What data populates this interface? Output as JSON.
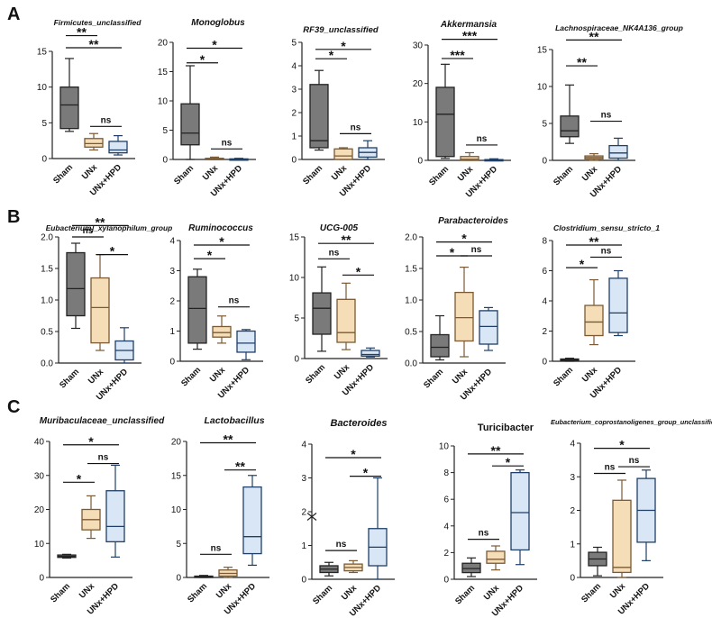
{
  "figure": {
    "panel_labels": [
      "A",
      "B",
      "C"
    ],
    "group_labels": [
      "Sham",
      "UNx",
      "UNx+HPD"
    ],
    "group_colors": {
      "Sham": {
        "fill": "#7a7a7a",
        "stroke": "#222222"
      },
      "UNx": {
        "fill": "#f5ddb8",
        "stroke": "#7a5a34"
      },
      "UNx+HPD": {
        "fill": "#d9e6f5",
        "stroke": "#1f3f66"
      }
    }
  },
  "chart_data": [
    {
      "type": "box",
      "panel": "A",
      "title": "Firmicutes_unclassified",
      "title_style": "italic",
      "categories": [
        "Sham",
        "UNx",
        "UNx+HPD"
      ],
      "ylim": [
        0,
        15
      ],
      "ticks": [
        0,
        5,
        10,
        15
      ],
      "boxes": [
        [
          3.8,
          4.2,
          7.5,
          10,
          14
        ],
        [
          1.2,
          1.6,
          2.1,
          2.8,
          3.5
        ],
        [
          0.5,
          0.8,
          1.2,
          2.4,
          3.2
        ]
      ],
      "annotations": [
        {
          "from": 0,
          "to": 1,
          "label": "**",
          "y": 17.2
        },
        {
          "from": 0,
          "to": 2,
          "label": "**",
          "y": 15.5
        },
        {
          "from": 1,
          "to": 2,
          "label": "ns",
          "y": 4.5
        }
      ]
    },
    {
      "type": "box",
      "panel": "A",
      "title": "Monoglobus",
      "title_style": "italic",
      "categories": [
        "Sham",
        "UNx",
        "UNx+HPD"
      ],
      "ylim": [
        0,
        20
      ],
      "ticks": [
        0,
        5,
        10,
        15,
        20
      ],
      "boxes": [
        [
          0,
          2.5,
          4.5,
          9.5,
          16
        ],
        [
          0,
          0,
          0.1,
          0.2,
          0.4
        ],
        [
          0,
          0,
          0,
          0.1,
          0.2
        ]
      ],
      "annotations": [
        {
          "from": 0,
          "to": 2,
          "label": "*",
          "y": 19
        },
        {
          "from": 0,
          "to": 1,
          "label": "*",
          "y": 16.5
        },
        {
          "from": 1,
          "to": 2,
          "label": "ns",
          "y": 1.8
        }
      ]
    },
    {
      "type": "box",
      "panel": "A",
      "title": "RF39_unclassified",
      "title_style": "italic",
      "categories": [
        "Sham",
        "UNx",
        "UNx+HPD"
      ],
      "ylim": [
        0,
        5
      ],
      "ticks": [
        0,
        1,
        2,
        3,
        4,
        5
      ],
      "boxes": [
        [
          0.4,
          0.5,
          0.8,
          3.2,
          3.8
        ],
        [
          0,
          0,
          0.15,
          0.45,
          0.5
        ],
        [
          0,
          0.1,
          0.3,
          0.5,
          0.8
        ]
      ],
      "annotations": [
        {
          "from": 0,
          "to": 1,
          "label": "*",
          "y": 4.3
        },
        {
          "from": 0,
          "to": 2,
          "label": "*",
          "y": 4.7
        },
        {
          "from": 1,
          "to": 2,
          "label": "ns",
          "y": 1.1
        }
      ]
    },
    {
      "type": "box",
      "panel": "A",
      "title": "Akkermansia",
      "title_style": "italic",
      "categories": [
        "Sham",
        "UNx",
        "UNx+HPD"
      ],
      "ylim": [
        0,
        30
      ],
      "ticks": [
        0,
        10,
        20,
        30
      ],
      "boxes": [
        [
          0.5,
          1,
          12,
          19,
          25
        ],
        [
          0,
          0,
          0.3,
          1,
          2
        ],
        [
          0,
          0,
          0,
          0.2,
          0.4
        ]
      ],
      "annotations": [
        {
          "from": 0,
          "to": 2,
          "label": "***",
          "y": 31.5
        },
        {
          "from": 0,
          "to": 1,
          "label": "***",
          "y": 26.5
        },
        {
          "from": 1,
          "to": 2,
          "label": "ns",
          "y": 4
        }
      ]
    },
    {
      "type": "box",
      "panel": "A",
      "title": "Lachnospiraceae_NK4A136_group",
      "title_style": "italic",
      "categories": [
        "Sham",
        "UNx",
        "UNx+HPD"
      ],
      "ylim": [
        0,
        15
      ],
      "ticks": [
        0,
        5,
        10,
        15
      ],
      "boxes": [
        [
          2.3,
          3.2,
          4,
          6,
          10.2
        ],
        [
          0,
          0.2,
          0.4,
          0.6,
          0.9
        ],
        [
          0,
          0.3,
          1,
          2,
          3
        ]
      ],
      "annotations": [
        {
          "from": 0,
          "to": 2,
          "label": "**",
          "y": 16.3
        },
        {
          "from": 0,
          "to": 1,
          "label": "**",
          "y": 12.8
        },
        {
          "from": 1,
          "to": 2,
          "label": "ns",
          "y": 5.3
        }
      ]
    },
    {
      "type": "box",
      "panel": "B",
      "title": "Eubacterium]_xylanophilum_group",
      "title_style": "italic",
      "categories": [
        "Sham",
        "UNx",
        "UNx+HPD"
      ],
      "ylim": [
        0,
        2
      ],
      "ticks": [
        0,
        0.5,
        1,
        1.5,
        2
      ],
      "tick_labels": [
        "0.0",
        "0.5",
        "1.0",
        "1.5",
        "2.0"
      ],
      "boxes": [
        [
          0.55,
          0.75,
          1.18,
          1.75,
          1.9
        ],
        [
          0.2,
          0.32,
          0.88,
          1.35,
          1.72
        ],
        [
          0,
          0.05,
          0.2,
          0.35,
          0.56
        ]
      ],
      "annotations": [
        {
          "from": 0,
          "to": 2,
          "label": "**",
          "y": 2.18
        },
        {
          "from": 0,
          "to": 1,
          "label": "ns",
          "y": 2.0
        },
        {
          "from": 1,
          "to": 2,
          "label": "*",
          "y": 1.72
        }
      ]
    },
    {
      "type": "box",
      "panel": "B",
      "title": "Ruminococcus",
      "title_style": "italic",
      "categories": [
        "Sham",
        "UNx",
        "UNx+HPD"
      ],
      "ylim": [
        0,
        4
      ],
      "ticks": [
        0,
        1,
        2,
        3,
        4
      ],
      "boxes": [
        [
          0.4,
          0.6,
          1.75,
          2.8,
          3.05
        ],
        [
          0.6,
          0.8,
          0.95,
          1.15,
          1.5
        ],
        [
          0.05,
          0.3,
          0.6,
          1,
          1.05
        ]
      ],
      "annotations": [
        {
          "from": 0,
          "to": 2,
          "label": "*",
          "y": 3.85
        },
        {
          "from": 0,
          "to": 1,
          "label": "*",
          "y": 3.4
        },
        {
          "from": 1,
          "to": 2,
          "label": "ns",
          "y": 1.8
        }
      ]
    },
    {
      "type": "box",
      "panel": "B",
      "title": "UCG-005",
      "title_style": "italic",
      "categories": [
        "Sham",
        "UNx",
        "UNx+HPD"
      ],
      "ylim": [
        0,
        15
      ],
      "ticks": [
        0,
        5,
        10,
        15
      ],
      "boxes": [
        [
          0.9,
          3,
          6.2,
          8.1,
          11.3
        ],
        [
          1.1,
          2,
          3.2,
          7.3,
          9.3
        ],
        [
          0.2,
          0.3,
          0.5,
          1,
          1.3
        ]
      ],
      "annotations": [
        {
          "from": 0,
          "to": 2,
          "label": "**",
          "y": 14.2
        },
        {
          "from": 0,
          "to": 1,
          "label": "ns",
          "y": 12.3
        },
        {
          "from": 1,
          "to": 2,
          "label": "*",
          "y": 10.3
        }
      ]
    },
    {
      "type": "box",
      "panel": "B",
      "title": "Parabacteroides",
      "title_style": "italic",
      "categories": [
        "Sham",
        "UNx",
        "UNx+HPD"
      ],
      "ylim": [
        0,
        2
      ],
      "ticks": [
        0,
        0.5,
        1,
        1.5,
        2
      ],
      "tick_labels": [
        "0.0",
        "0.5",
        "1.0",
        "1.5",
        "2.0"
      ],
      "boxes": [
        [
          0.05,
          0.1,
          0.25,
          0.45,
          0.75
        ],
        [
          0.1,
          0.35,
          0.72,
          1.12,
          1.52
        ],
        [
          0.2,
          0.3,
          0.58,
          0.83,
          0.88
        ]
      ],
      "annotations": [
        {
          "from": 0,
          "to": 2,
          "label": "*",
          "y": 1.92
        },
        {
          "from": 0,
          "to": 1,
          "label": "*",
          "y": 1.7
        },
        {
          "from": 1,
          "to": 2,
          "label": "ns",
          "y": 1.7
        }
      ]
    },
    {
      "type": "box",
      "panel": "B",
      "title": "Clostridium_sensu_stricto_1",
      "title_style": "italic",
      "categories": [
        "Sham",
        "UNx",
        "UNx+HPD"
      ],
      "ylim": [
        0,
        8
      ],
      "ticks": [
        0,
        2,
        4,
        6,
        8
      ],
      "boxes": [
        [
          0,
          0.05,
          0.1,
          0.15,
          0.2
        ],
        [
          1.1,
          1.7,
          2.6,
          3.7,
          5.4
        ],
        [
          1.7,
          1.9,
          3.2,
          5.5,
          6
        ]
      ],
      "annotations": [
        {
          "from": 0,
          "to": 2,
          "label": "**",
          "y": 7.7
        },
        {
          "from": 0,
          "to": 1,
          "label": "*",
          "y": 6.2
        },
        {
          "from": 1,
          "to": 2,
          "label": "ns",
          "y": 6.9
        }
      ]
    },
    {
      "type": "box",
      "panel": "C",
      "title": "Muribaculaceae_unclassified",
      "title_style": "italic",
      "categories": [
        "Sham",
        "UNx",
        "UNx+HPD"
      ],
      "ylim": [
        0,
        40
      ],
      "ticks": [
        0,
        10,
        20,
        30,
        40
      ],
      "boxes": [
        [
          5.7,
          5.9,
          6.2,
          6.6,
          6.8
        ],
        [
          11.5,
          14,
          17,
          20,
          24
        ],
        [
          6,
          10.5,
          15,
          25.5,
          33
        ]
      ],
      "annotations": [
        {
          "from": 0,
          "to": 2,
          "label": "*",
          "y": 39
        },
        {
          "from": 0,
          "to": 1,
          "label": "*",
          "y": 28
        },
        {
          "from": 1,
          "to": 2,
          "label": "ns",
          "y": 33.5
        }
      ]
    },
    {
      "type": "box",
      "panel": "C",
      "title": "Lactobacillus",
      "title_style": "italic",
      "categories": [
        "Sham",
        "UNx",
        "UNx+HPD"
      ],
      "ylim": [
        0,
        20
      ],
      "ticks": [
        0,
        5,
        10,
        15,
        20
      ],
      "boxes": [
        [
          0,
          0.05,
          0.1,
          0.2,
          0.3
        ],
        [
          0,
          0.2,
          0.6,
          1.1,
          1.5
        ],
        [
          1.8,
          3.5,
          6,
          13.3,
          15
        ]
      ],
      "annotations": [
        {
          "from": 0,
          "to": 2,
          "label": "**",
          "y": 19.8
        },
        {
          "from": 1,
          "to": 2,
          "label": "**",
          "y": 15.8
        },
        {
          "from": 0,
          "to": 1,
          "label": "ns",
          "y": 3.4
        }
      ]
    },
    {
      "type": "box",
      "panel": "C",
      "title": "Bacteroides",
      "title_style": "italic",
      "categories": [
        "Sham",
        "UNx",
        "UNx+HPD"
      ],
      "ylim": [
        0,
        4
      ],
      "ticks": [
        0,
        1,
        2,
        3,
        4
      ],
      "axis_break": 1.8,
      "boxes": [
        [
          0.1,
          0.2,
          0.3,
          0.4,
          0.5
        ],
        [
          0.2,
          0.25,
          0.35,
          0.45,
          0.55
        ],
        [
          0,
          0.4,
          0.95,
          1.5,
          3
        ]
      ],
      "annotations": [
        {
          "from": 0,
          "to": 2,
          "label": "*",
          "y": 3.6
        },
        {
          "from": 1,
          "to": 2,
          "label": "*",
          "y": 3.05
        },
        {
          "from": 0,
          "to": 1,
          "label": "ns",
          "y": 0.85
        }
      ]
    },
    {
      "type": "box",
      "panel": "C",
      "title": "Turicibacter",
      "title_style": "normal",
      "categories": [
        "Sham",
        "UNx",
        "UNx+HPD"
      ],
      "ylim": [
        0,
        10
      ],
      "ticks": [
        0,
        2,
        4,
        6,
        8,
        10
      ],
      "boxes": [
        [
          0.2,
          0.5,
          0.8,
          1.2,
          1.6
        ],
        [
          0.7,
          1.2,
          1.5,
          2.1,
          2.5
        ],
        [
          1.1,
          2.2,
          5,
          8,
          8.2
        ]
      ],
      "annotations": [
        {
          "from": 0,
          "to": 2,
          "label": "**",
          "y": 9.4
        },
        {
          "from": 1,
          "to": 2,
          "label": "*",
          "y": 8.5
        },
        {
          "from": 0,
          "to": 1,
          "label": "ns",
          "y": 3
        }
      ]
    },
    {
      "type": "box",
      "panel": "C",
      "title": "Eubacterium_coprostanoligenes_group_unclassifie",
      "title_style": "italic",
      "categories": [
        "Sham",
        "UNx",
        "UNx+HPD"
      ],
      "ylim": [
        0,
        4
      ],
      "ticks": [
        0,
        1,
        2,
        3,
        4
      ],
      "boxes": [
        [
          0.05,
          0.35,
          0.55,
          0.75,
          0.9
        ],
        [
          0,
          0.15,
          0.3,
          2.3,
          2.9
        ],
        [
          0.5,
          1.05,
          2,
          2.95,
          3.2
        ]
      ],
      "annotations": [
        {
          "from": 0,
          "to": 2,
          "label": "*",
          "y": 3.85
        },
        {
          "from": 0,
          "to": 1,
          "label": "ns",
          "y": 3.1
        },
        {
          "from": 1,
          "to": 2,
          "label": "ns",
          "y": 3.3
        }
      ]
    }
  ]
}
